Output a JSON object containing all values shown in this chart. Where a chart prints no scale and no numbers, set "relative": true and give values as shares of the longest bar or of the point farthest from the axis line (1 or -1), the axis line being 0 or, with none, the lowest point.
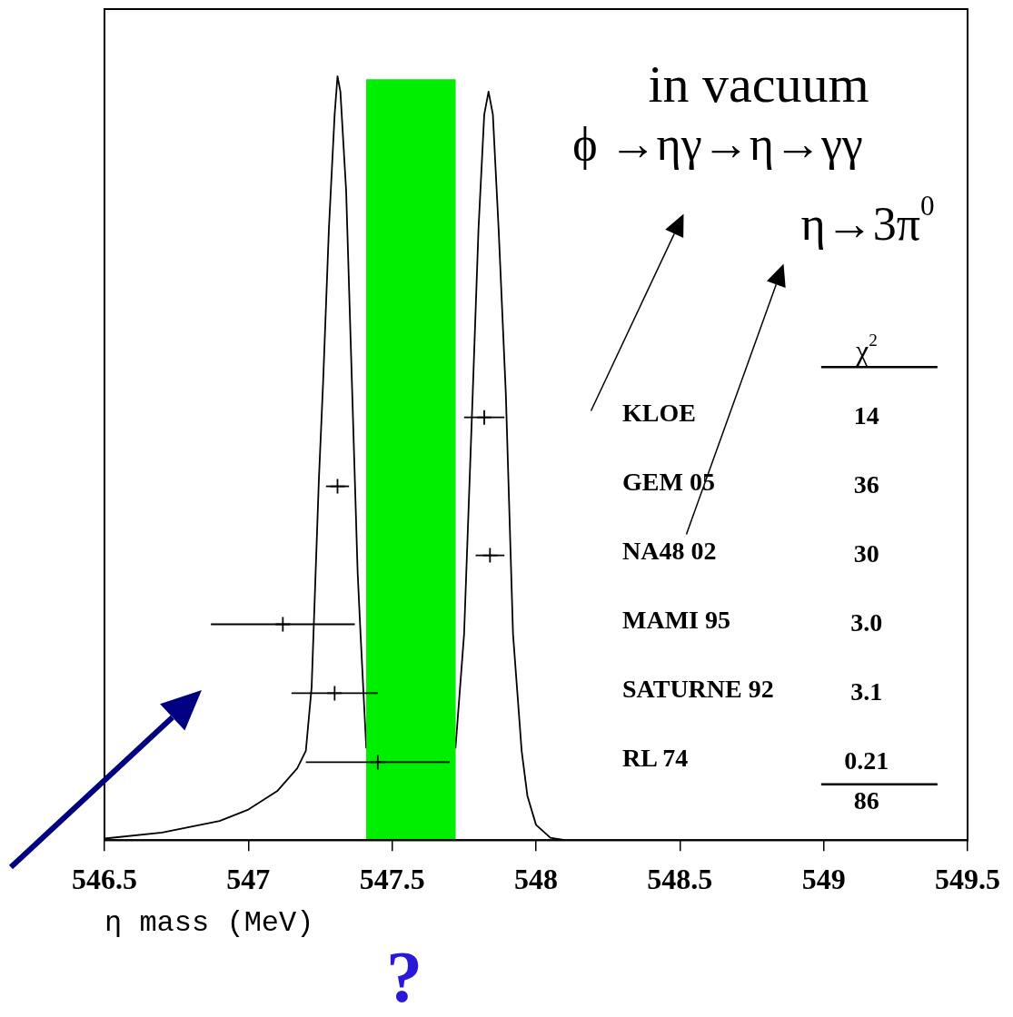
{
  "chart_data": [
    {
      "type": "line",
      "relative": true,
      "color": "#000000",
      "marker": "none",
      "line_style": "solid",
      "tick_labels": false,
      "x": [
        546.5,
        546.7,
        546.9,
        547.0,
        547.1,
        547.17,
        547.2,
        547.22,
        547.245,
        547.26,
        547.28,
        547.3,
        547.31,
        547.32,
        547.34,
        547.36,
        547.38,
        547.39,
        547.41,
        547.56,
        547.72,
        547.75,
        547.78,
        547.8,
        547.82,
        547.835,
        547.85,
        547.87,
        547.895,
        547.92,
        547.95,
        547.97,
        548.0,
        548.05,
        548.1
      ],
      "values": [
        0.002,
        0.01,
        0.025,
        0.04,
        0.064,
        0.094,
        0.117,
        0.2,
        0.47,
        0.6,
        0.8,
        0.95,
        1.0,
        0.98,
        0.85,
        0.6,
        0.35,
        0.27,
        0.12,
        null,
        0.12,
        0.27,
        0.585,
        0.8,
        0.95,
        0.98,
        0.95,
        0.8,
        0.585,
        0.27,
        0.117,
        0.058,
        0.02,
        0.003,
        0
      ],
      "xlim": [
        546.5,
        549.5
      ],
      "xticks": [
        546.5,
        547,
        547.5,
        548,
        548.5,
        549,
        549.5
      ],
      "bands": [
        {
          "axis": "x",
          "from": 547.41,
          "to": 547.72,
          "color": "#00ee00"
        }
      ],
      "annotations": [
        "in vacuum",
        "ϕ →ηγ→η→γγ",
        "η→3π$^{0}$",
        "?"
      ]
    },
    {
      "type": "scatter",
      "orientation": "horizontal",
      "color": "#000000",
      "marker": "cross",
      "xlabel": "η mass (MeV)",
      "categories": [
        "KLOE",
        "GEM 05",
        "NA48 02",
        "MAMI 95",
        "SATURNE 92",
        "RL 74"
      ],
      "values": [
        547.82,
        547.31,
        547.84,
        547.12,
        547.3,
        547.45
      ],
      "errors": [
        0.07,
        0.04,
        0.05,
        0.25,
        0.15,
        0.25
      ],
      "xlim": [
        546.5,
        549.5
      ],
      "xticks": [
        546.5,
        547,
        547.5,
        548,
        548.5,
        549,
        549.5
      ],
      "annotations": [
        "χ$^{2}$",
        "14",
        "36",
        "30",
        "3.0",
        "3.1",
        "0.21",
        "86"
      ]
    }
  ]
}
